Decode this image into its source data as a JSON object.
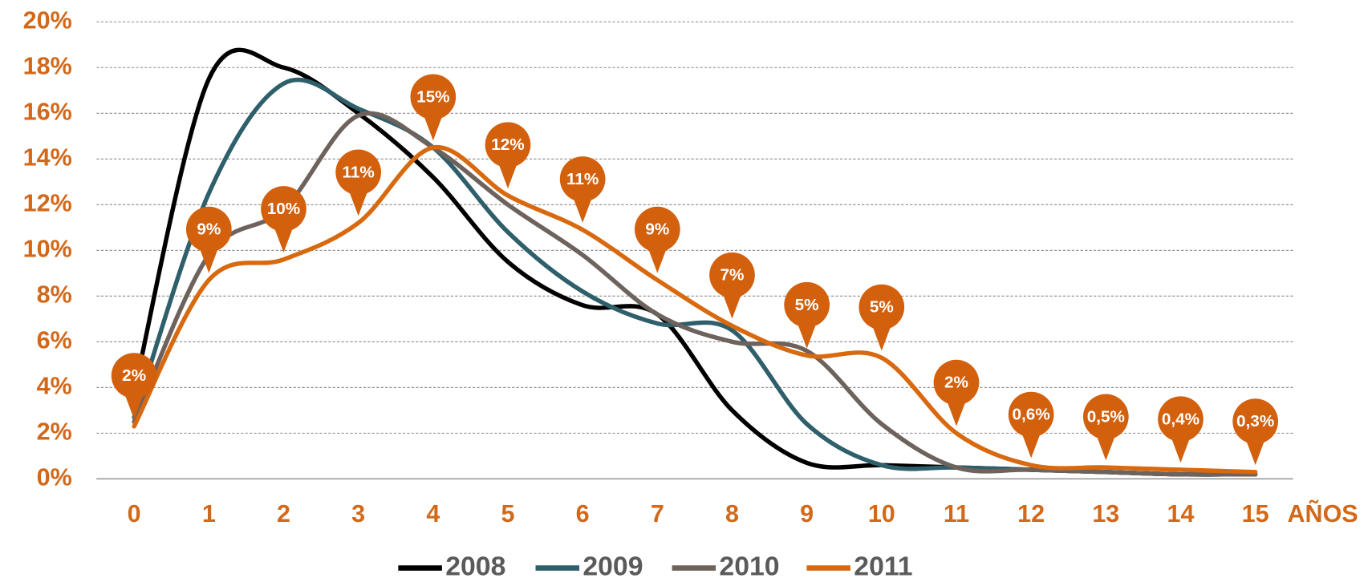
{
  "chart_data": {
    "type": "line",
    "x_label": "AÑOS",
    "categories": [
      "0",
      "1",
      "2",
      "3",
      "4",
      "5",
      "6",
      "7",
      "8",
      "9",
      "10",
      "11",
      "12",
      "13",
      "14",
      "15"
    ],
    "ylim": [
      0,
      20
    ],
    "yticks": [
      {
        "value": 0,
        "label": "0%"
      },
      {
        "value": 2,
        "label": "2%"
      },
      {
        "value": 4,
        "label": "4%"
      },
      {
        "value": 6,
        "label": "6%"
      },
      {
        "value": 8,
        "label": "8%"
      },
      {
        "value": 10,
        "label": "10%"
      },
      {
        "value": 12,
        "label": "12%"
      },
      {
        "value": 14,
        "label": "14%"
      },
      {
        "value": 16,
        "label": "16%"
      },
      {
        "value": 18,
        "label": "18%"
      },
      {
        "value": 20,
        "label": "20%"
      }
    ],
    "grid": true,
    "legend": "bottom",
    "series": [
      {
        "name": "2008",
        "color": "#000000",
        "values": [
          3.8,
          17.5,
          18.0,
          16.0,
          13.2,
          9.5,
          7.6,
          7.2,
          3.0,
          0.7,
          0.6,
          0.5,
          0.4,
          0.3,
          0.2,
          0.2
        ]
      },
      {
        "name": "2009",
        "color": "#2e5f6b",
        "values": [
          2.7,
          12.5,
          17.3,
          16.2,
          14.5,
          10.8,
          8.2,
          6.8,
          6.5,
          2.4,
          0.6,
          0.5,
          0.4,
          0.3,
          0.2,
          0.2
        ]
      },
      {
        "name": "2010",
        "color": "#6e625d",
        "values": [
          2.5,
          9.8,
          11.8,
          15.9,
          14.5,
          12.0,
          9.8,
          7.2,
          6.0,
          5.6,
          2.4,
          0.5,
          0.4,
          0.3,
          0.2,
          0.2
        ]
      },
      {
        "name": "2011",
        "color": "#d8690f",
        "values": [
          2.3,
          8.7,
          9.6,
          11.2,
          14.5,
          12.4,
          10.9,
          8.7,
          6.7,
          5.4,
          5.3,
          2.0,
          0.6,
          0.5,
          0.4,
          0.3
        ],
        "value_labels": [
          "2%",
          "9%",
          "10%",
          "11%",
          "15%",
          "12%",
          "11%",
          "9%",
          "7%",
          "5%",
          "5%",
          "2%",
          "0,6%",
          "0,5%",
          "0,4%",
          "0,3%"
        ]
      }
    ]
  }
}
